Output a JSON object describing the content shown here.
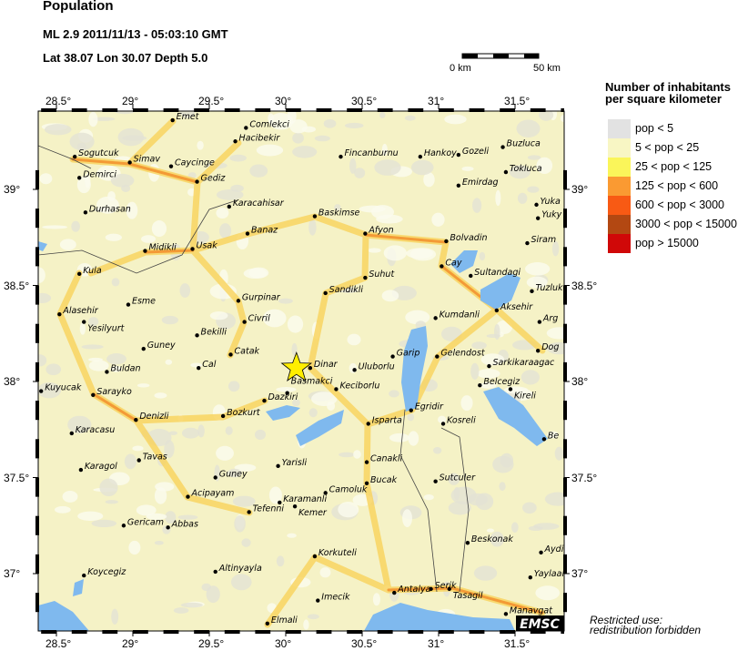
{
  "header": {
    "title": "Population",
    "event": "ML 2.9  2011/11/13 - 05:03:10 GMT",
    "location": "Lat 38.07    Lon  30.07    Depth  5.0"
  },
  "scale_bar": {
    "start_label": "0 km",
    "end_label": "50 km"
  },
  "axes": {
    "lon_ticks": [
      {
        "v": 28.5,
        "label": "28.5°"
      },
      {
        "v": 29,
        "label": "29°"
      },
      {
        "v": 29.5,
        "label": "29.5°"
      },
      {
        "v": 30,
        "label": "30°"
      },
      {
        "v": 30.5,
        "label": "30.5°"
      },
      {
        "v": 31,
        "label": "31°"
      },
      {
        "v": 31.5,
        "label": "31.5°"
      }
    ],
    "lat_ticks": [
      {
        "v": 39,
        "label": "39°"
      },
      {
        "v": 38.5,
        "label": "38.5°"
      },
      {
        "v": 38,
        "label": "38°"
      },
      {
        "v": 37.5,
        "label": "37.5°"
      },
      {
        "v": 37,
        "label": "37°"
      }
    ],
    "lon_range": [
      28.38,
      31.82
    ],
    "lat_range": [
      36.71,
      39.41
    ]
  },
  "legend": {
    "title_line1": "Number of inhabitants",
    "title_line2": "per square kilometer",
    "items": [
      {
        "label": "pop < 5",
        "color": "#e2e2e2"
      },
      {
        "label": "5 < pop < 25",
        "color": "#f8f6c4"
      },
      {
        "label": "25 < pop < 125",
        "color": "#faf55a"
      },
      {
        "label": "125 < pop < 600",
        "color": "#fa9a32"
      },
      {
        "label": "600 < pop < 3000",
        "color": "#f85a14"
      },
      {
        "label": "3000 < pop < 15000",
        "color": "#b34812"
      },
      {
        "label": "pop > 15000",
        "color": "#d00808"
      }
    ]
  },
  "epicenter": {
    "lon": 30.07,
    "lat": 38.07,
    "color": "#ffee00"
  },
  "water_color": "#7fb9ee",
  "cities": [
    {
      "name": "Emet",
      "lon": 29.26,
      "lat": 39.36
    },
    {
      "name": "Comlekci",
      "lon": 29.74,
      "lat": 39.32
    },
    {
      "name": "Hacibekir",
      "lon": 29.67,
      "lat": 39.25
    },
    {
      "name": "Sogutcuk",
      "lon": 28.62,
      "lat": 39.17
    },
    {
      "name": "Simav",
      "lon": 28.98,
      "lat": 39.14
    },
    {
      "name": "Caycinge",
      "lon": 29.25,
      "lat": 39.12
    },
    {
      "name": "Demirci",
      "lon": 28.65,
      "lat": 39.06
    },
    {
      "name": "Gediz",
      "lon": 29.42,
      "lat": 39.04
    },
    {
      "name": "Fincanburnu",
      "lon": 30.36,
      "lat": 39.17
    },
    {
      "name": "Hankoy",
      "lon": 30.88,
      "lat": 39.17
    },
    {
      "name": "Gozeli",
      "lon": 31.13,
      "lat": 39.18
    },
    {
      "name": "Buzluca",
      "lon": 31.42,
      "lat": 39.22
    },
    {
      "name": "Tokluca",
      "lon": 31.44,
      "lat": 39.09
    },
    {
      "name": "Emirdag",
      "lon": 31.13,
      "lat": 39.02
    },
    {
      "name": "Yuka",
      "lon": 31.64,
      "lat": 38.92
    },
    {
      "name": "Yuky",
      "lon": 31.65,
      "lat": 38.85
    },
    {
      "name": "Durhasan",
      "lon": 28.69,
      "lat": 38.88
    },
    {
      "name": "Karacahisar",
      "lon": 29.63,
      "lat": 38.91
    },
    {
      "name": "Baskimse",
      "lon": 30.19,
      "lat": 38.86
    },
    {
      "name": "Afyon",
      "lon": 30.52,
      "lat": 38.77
    },
    {
      "name": "Midikli",
      "lon": 29.08,
      "lat": 38.68
    },
    {
      "name": "Usak",
      "lon": 29.39,
      "lat": 38.69
    },
    {
      "name": "Banaz",
      "lon": 29.75,
      "lat": 38.77
    },
    {
      "name": "Bolvadin",
      "lon": 31.05,
      "lat": 38.73
    },
    {
      "name": "Siram",
      "lon": 31.58,
      "lat": 38.72
    },
    {
      "name": "Kula",
      "lon": 28.65,
      "lat": 38.56
    },
    {
      "name": "Cay",
      "lon": 31.02,
      "lat": 38.6
    },
    {
      "name": "Sultandagi",
      "lon": 31.21,
      "lat": 38.55
    },
    {
      "name": "Tuzluk",
      "lon": 31.61,
      "lat": 38.47
    },
    {
      "name": "Suhut",
      "lon": 30.52,
      "lat": 38.54
    },
    {
      "name": "Sandikli",
      "lon": 30.26,
      "lat": 38.46
    },
    {
      "name": "Esme",
      "lon": 28.97,
      "lat": 38.4
    },
    {
      "name": "Gurpinar",
      "lon": 29.69,
      "lat": 38.42
    },
    {
      "name": "Alasehir",
      "lon": 28.52,
      "lat": 38.35
    },
    {
      "name": "Yesilyurt",
      "lon": 28.68,
      "lat": 38.31
    },
    {
      "name": "Kumdanli",
      "lon": 30.98,
      "lat": 38.33
    },
    {
      "name": "Aksehir",
      "lon": 31.38,
      "lat": 38.37
    },
    {
      "name": "Arg",
      "lon": 31.66,
      "lat": 38.31
    },
    {
      "name": "Civril",
      "lon": 29.73,
      "lat": 38.31
    },
    {
      "name": "Bekilli",
      "lon": 29.42,
      "lat": 38.24
    },
    {
      "name": "Guney",
      "lon": 29.07,
      "lat": 38.17
    },
    {
      "name": "Catak",
      "lon": 29.64,
      "lat": 38.14
    },
    {
      "name": "Dog",
      "lon": 31.65,
      "lat": 38.16
    },
    {
      "name": "Cal",
      "lon": 29.43,
      "lat": 38.07
    },
    {
      "name": "Garip",
      "lon": 30.7,
      "lat": 38.13
    },
    {
      "name": "Gelendost",
      "lon": 30.99,
      "lat": 38.13
    },
    {
      "name": "Sarkikaraagac",
      "lon": 31.33,
      "lat": 38.08
    },
    {
      "name": "Dinar",
      "lon": 30.16,
      "lat": 38.07
    },
    {
      "name": "Uluborlu",
      "lon": 30.45,
      "lat": 38.06
    },
    {
      "name": "Buldan",
      "lon": 28.83,
      "lat": 38.05
    },
    {
      "name": "Kuyucak",
      "lon": 28.4,
      "lat": 37.95
    },
    {
      "name": "Sarayko",
      "lon": 28.74,
      "lat": 37.93
    },
    {
      "name": "Dazkiri",
      "lon": 29.86,
      "lat": 37.9
    },
    {
      "name": "Basmakci",
      "lon": 30.01,
      "lat": 37.94
    },
    {
      "name": "Keciborlu",
      "lon": 30.33,
      "lat": 37.96
    },
    {
      "name": "Belcegiz",
      "lon": 31.27,
      "lat": 37.98
    },
    {
      "name": "Kireli",
      "lon": 31.47,
      "lat": 37.96
    },
    {
      "name": "Egridir",
      "lon": 30.82,
      "lat": 37.85
    },
    {
      "name": "Bozkurt",
      "lon": 29.59,
      "lat": 37.82
    },
    {
      "name": "Denizli",
      "lon": 29.02,
      "lat": 37.8
    },
    {
      "name": "Isparta",
      "lon": 30.54,
      "lat": 37.78
    },
    {
      "name": "Kosreli",
      "lon": 31.03,
      "lat": 37.78
    },
    {
      "name": "Be",
      "lon": 31.69,
      "lat": 37.7
    },
    {
      "name": "Karacasu",
      "lon": 28.6,
      "lat": 37.73
    },
    {
      "name": "Tavas",
      "lon": 29.04,
      "lat": 37.59
    },
    {
      "name": "Karagol",
      "lon": 28.66,
      "lat": 37.54
    },
    {
      "name": "Yarisli",
      "lon": 29.95,
      "lat": 37.56
    },
    {
      "name": "Canakli",
      "lon": 30.53,
      "lat": 37.58
    },
    {
      "name": "Guney",
      "lon": 29.54,
      "lat": 37.5
    },
    {
      "name": "Sutculer",
      "lon": 30.98,
      "lat": 37.48
    },
    {
      "name": "Bucak",
      "lon": 30.53,
      "lat": 37.47
    },
    {
      "name": "Acipayam",
      "lon": 29.36,
      "lat": 37.4
    },
    {
      "name": "Camoluk",
      "lon": 30.26,
      "lat": 37.42
    },
    {
      "name": "Karamanli",
      "lon": 29.96,
      "lat": 37.37
    },
    {
      "name": "Kemer",
      "lon": 30.06,
      "lat": 37.35
    },
    {
      "name": "Tefenni",
      "lon": 29.76,
      "lat": 37.32
    },
    {
      "name": "Gericam",
      "lon": 28.94,
      "lat": 37.25
    },
    {
      "name": "Abbas",
      "lon": 29.23,
      "lat": 37.24
    },
    {
      "name": "Beskonak",
      "lon": 31.19,
      "lat": 37.16
    },
    {
      "name": "Aydink",
      "lon": 31.67,
      "lat": 37.11
    },
    {
      "name": "Korkuteli",
      "lon": 30.19,
      "lat": 37.09
    },
    {
      "name": "Altinyayla",
      "lon": 29.54,
      "lat": 37.01
    },
    {
      "name": "Koycegiz",
      "lon": 28.68,
      "lat": 36.99
    },
    {
      "name": "YaylaalaG",
      "lon": 31.6,
      "lat": 36.98
    },
    {
      "name": "Serik",
      "lon": 30.95,
      "lat": 36.92
    },
    {
      "name": "Tasagil",
      "lon": 31.07,
      "lat": 36.92
    },
    {
      "name": "Antalya",
      "lon": 30.71,
      "lat": 36.9
    },
    {
      "name": "Imecik",
      "lon": 30.21,
      "lat": 36.86
    },
    {
      "name": "Manavgat",
      "lon": 31.44,
      "lat": 36.79
    },
    {
      "name": "Elmali",
      "lon": 29.88,
      "lat": 36.74
    }
  ],
  "logo": "EMSC",
  "note": {
    "line1": "Restricted use:",
    "line2": "redistribution forbidden"
  }
}
